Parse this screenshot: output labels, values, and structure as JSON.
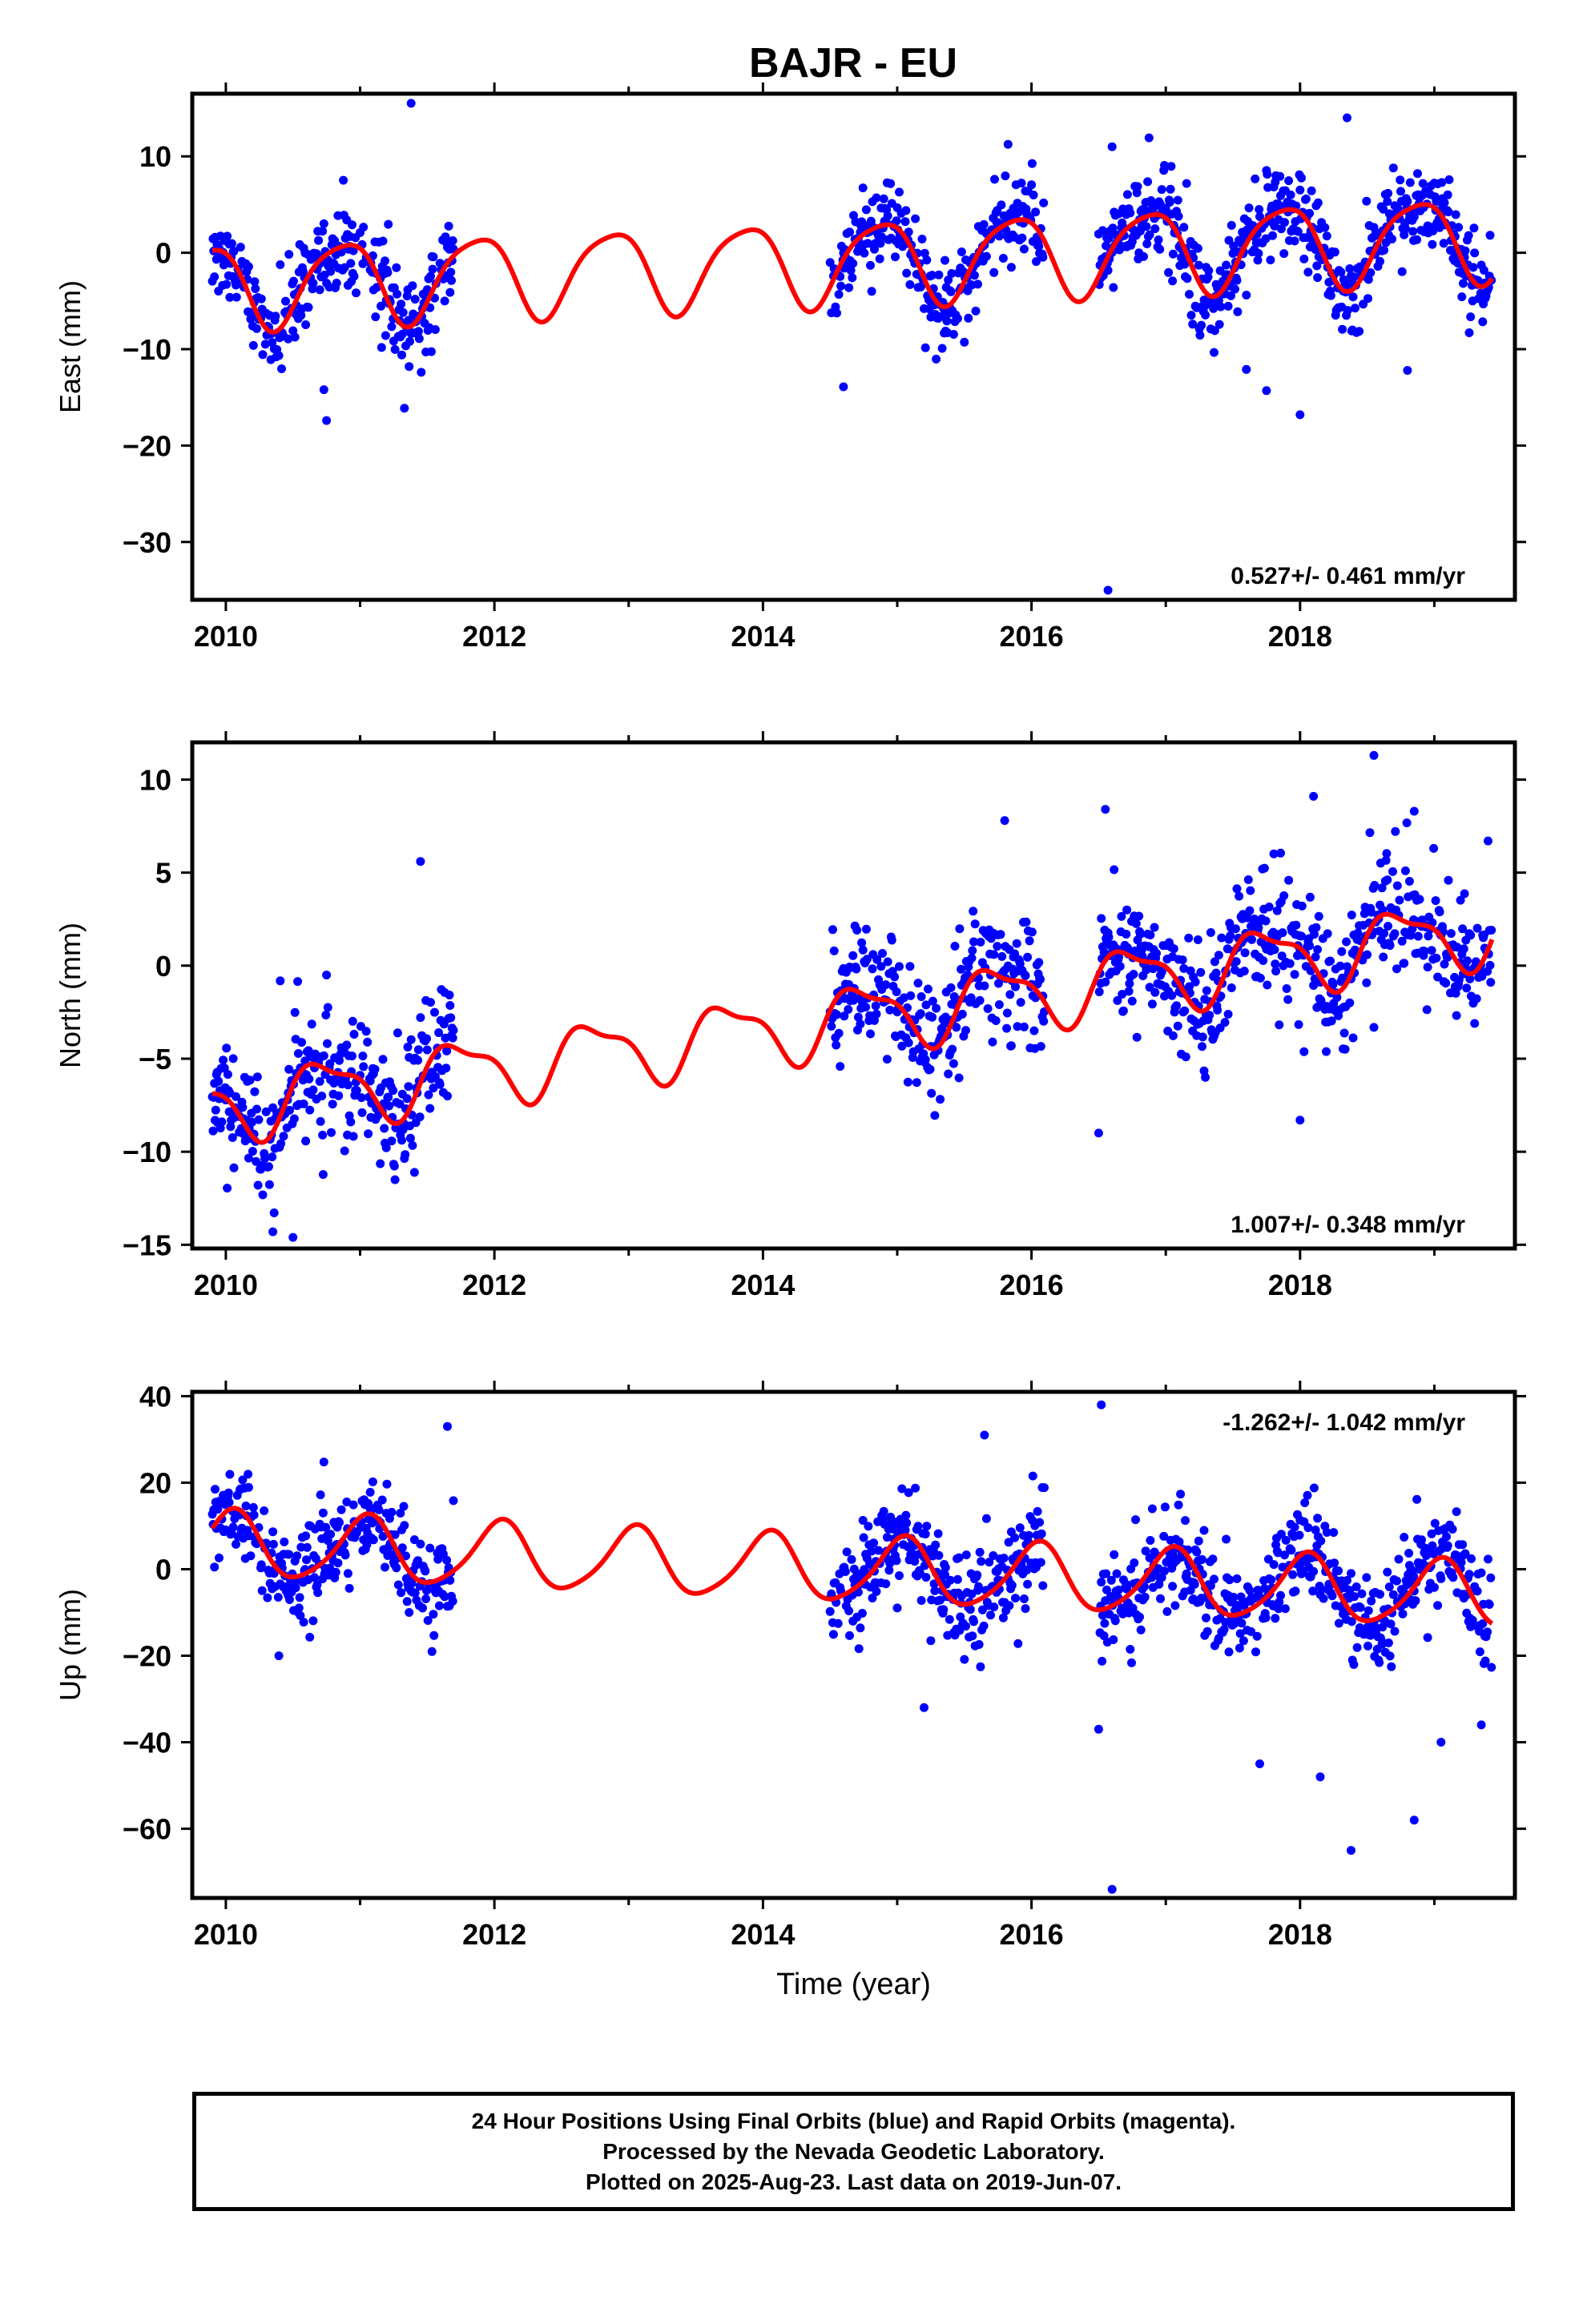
{
  "title": "BAJR - EU",
  "colors": {
    "points": "#0000ff",
    "fit": "#ff0000",
    "frame": "#000000"
  },
  "chart_data": [
    {
      "type": "scatter",
      "name": "east",
      "ylabel": "East (mm)",
      "xlabel": "",
      "xlim": [
        2009.75,
        2019.6
      ],
      "ylim": [
        -36,
        16.5
      ],
      "xticks": [
        2010,
        2012,
        2014,
        2016,
        2018
      ],
      "yticks": [
        10,
        0,
        -10,
        -20,
        -30
      ],
      "grid": false,
      "annotation": "0.527+/- 0.461 mm/yr",
      "annotation_position": "bottom-right",
      "fit": {
        "rate": 0.527,
        "offset": -1.0,
        "annual_amp": 4.3,
        "annual_phase": 2.4,
        "semi_amp": 0.8,
        "semi_phase": 0.5
      },
      "data_segments": [
        [
          2009.9,
          2010.98
        ],
        [
          2011.0,
          2011.7
        ],
        [
          2014.5,
          2016.1
        ],
        [
          2016.5,
          2019.43
        ]
      ],
      "scatter_sd": 2.2,
      "outliers": [
        [
          2011.38,
          15.5
        ],
        [
          2016.57,
          -35
        ],
        [
          2010.75,
          -17.4
        ],
        [
          2014.6,
          -13.9
        ],
        [
          2017.75,
          -14.3
        ],
        [
          2018.0,
          -16.8
        ],
        [
          2010.73,
          -14.2
        ],
        [
          2016.6,
          11.0
        ],
        [
          2018.35,
          14.0
        ],
        [
          2017.6,
          -12.1
        ],
        [
          2018.8,
          -12.2
        ]
      ]
    },
    {
      "type": "scatter",
      "name": "north",
      "ylabel": "North (mm)",
      "xlabel": "",
      "xlim": [
        2009.75,
        2019.6
      ],
      "ylim": [
        -15.2,
        12
      ],
      "xticks": [
        2010,
        2012,
        2014,
        2016,
        2018
      ],
      "yticks": [
        10,
        5,
        0,
        -5,
        -10,
        -15
      ],
      "grid": false,
      "annotation": "1.007+/- 0.348 mm/yr",
      "annotation_position": "bottom-right",
      "fit": {
        "rate": 1.007,
        "offset": -3.0,
        "annual_amp": 1.7,
        "annual_phase": 3.2,
        "semi_amp": 0.6,
        "semi_phase": 1.0
      },
      "data_segments": [
        [
          2009.9,
          2010.98
        ],
        [
          2011.0,
          2011.7
        ],
        [
          2014.5,
          2016.1
        ],
        [
          2016.5,
          2019.43
        ]
      ],
      "scatter_sd": 1.6,
      "outliers": [
        [
          2011.45,
          5.6
        ],
        [
          2018.55,
          11.3
        ],
        [
          2018.1,
          9.1
        ],
        [
          2015.8,
          7.8
        ],
        [
          2016.55,
          8.4
        ],
        [
          2016.5,
          -9.0
        ],
        [
          2018.0,
          -8.3
        ],
        [
          2010.5,
          -14.6
        ],
        [
          2010.35,
          -14.3
        ],
        [
          2019.4,
          6.7
        ],
        [
          2018.85,
          8.3
        ]
      ]
    },
    {
      "type": "scatter",
      "name": "up",
      "ylabel": "Up (mm)",
      "xlabel": "Time (year)",
      "xlim": [
        2009.75,
        2019.6
      ],
      "ylim": [
        -76,
        41
      ],
      "xticks": [
        2010,
        2012,
        2014,
        2016,
        2018
      ],
      "yticks": [
        40,
        20,
        0,
        -20,
        -40,
        -60
      ],
      "grid": false,
      "annotation": "-1.262+/- 1.042 mm/yr",
      "annotation_position": "top-right",
      "fit": {
        "rate": -1.262,
        "offset": 0.0,
        "annual_amp": 7.5,
        "annual_phase": 1.3,
        "semi_amp": 1.2,
        "semi_phase": 0.3
      },
      "data_segments": [
        [
          2009.9,
          2010.98
        ],
        [
          2011.0,
          2011.7
        ],
        [
          2014.5,
          2016.1
        ],
        [
          2016.5,
          2019.43
        ]
      ],
      "scatter_sd": 5.5,
      "outliers": [
        [
          2016.52,
          38
        ],
        [
          2011.65,
          33
        ],
        [
          2015.65,
          31
        ],
        [
          2016.6,
          -74
        ],
        [
          2018.38,
          -65
        ],
        [
          2018.85,
          -58
        ],
        [
          2017.7,
          -45
        ],
        [
          2018.15,
          -48
        ],
        [
          2019.35,
          -36
        ],
        [
          2019.05,
          -40
        ],
        [
          2016.5,
          -37
        ],
        [
          2015.2,
          -32
        ]
      ]
    }
  ],
  "footer": {
    "line1": "24 Hour Positions Using Final Orbits (blue) and Rapid Orbits (magenta).",
    "line2": "Processed by the Nevada Geodetic Laboratory.",
    "line3": "Plotted on 2025-Aug-23. Last data on 2019-Jun-07."
  }
}
